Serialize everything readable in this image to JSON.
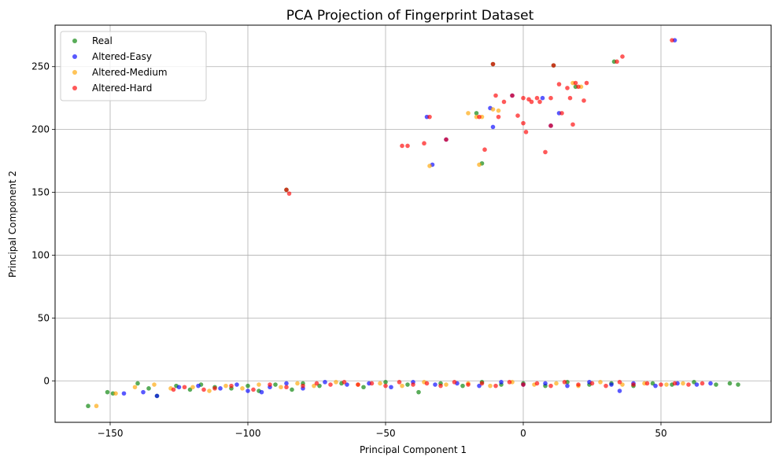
{
  "chart_data": {
    "type": "scatter",
    "title": "PCA Projection of Fingerprint Dataset",
    "xlabel": "Principal Component 1",
    "ylabel": "Principal Component 2",
    "xlim": [
      -170,
      90
    ],
    "ylim": [
      -33,
      283
    ],
    "xticks": [
      -150,
      -100,
      -50,
      0,
      50
    ],
    "yticks": [
      0,
      50,
      100,
      150,
      200,
      250
    ],
    "xtick_labels": [
      "−150",
      "−100",
      "−50",
      "0",
      "50"
    ],
    "ytick_labels": [
      "0",
      "50",
      "100",
      "150",
      "200",
      "250"
    ],
    "grid": true,
    "legend_position": "top-left",
    "series": [
      {
        "name": "Real",
        "color": "#008000",
        "points": [
          [
            -158,
            -20
          ],
          [
            -151,
            -9
          ],
          [
            -149,
            -10
          ],
          [
            -140,
            -2
          ],
          [
            -136,
            -6
          ],
          [
            -133,
            -12
          ],
          [
            -126,
            -4
          ],
          [
            -121,
            -7
          ],
          [
            -117,
            -3
          ],
          [
            -112,
            -5
          ],
          [
            -106,
            -6
          ],
          [
            -100,
            -4
          ],
          [
            -96,
            -8
          ],
          [
            -90,
            -3
          ],
          [
            -84,
            -7
          ],
          [
            -80,
            -2
          ],
          [
            -74,
            -4
          ],
          [
            -66,
            -2
          ],
          [
            -58,
            -5
          ],
          [
            -50,
            -1
          ],
          [
            -42,
            -3
          ],
          [
            -38,
            -9
          ],
          [
            -30,
            -2
          ],
          [
            -22,
            -4
          ],
          [
            -15,
            -1
          ],
          [
            -8,
            -3
          ],
          [
            0,
            -2
          ],
          [
            8,
            -4
          ],
          [
            16,
            -1
          ],
          [
            24,
            -3
          ],
          [
            32,
            -2
          ],
          [
            40,
            -4
          ],
          [
            47,
            -2
          ],
          [
            54,
            -3
          ],
          [
            62,
            -1
          ],
          [
            70,
            -3
          ],
          [
            75,
            -2
          ],
          [
            78,
            -3
          ],
          [
            -15,
            173
          ],
          [
            -17,
            213
          ],
          [
            -11,
            252
          ],
          [
            11,
            251
          ],
          [
            33,
            254
          ],
          [
            -86,
            152
          ],
          [
            19,
            234
          ]
        ]
      },
      {
        "name": "Altered-Easy",
        "color": "#0000ff",
        "points": [
          [
            -145,
            -10
          ],
          [
            -138,
            -9
          ],
          [
            -133,
            -12
          ],
          [
            -125,
            -5
          ],
          [
            -118,
            -4
          ],
          [
            -110,
            -6
          ],
          [
            -104,
            -3
          ],
          [
            -100,
            -8
          ],
          [
            -95,
            -9
          ],
          [
            -92,
            -5
          ],
          [
            -86,
            -2
          ],
          [
            -80,
            -6
          ],
          [
            -72,
            -1
          ],
          [
            -64,
            -3
          ],
          [
            -56,
            -2
          ],
          [
            -48,
            -5
          ],
          [
            -40,
            -1
          ],
          [
            -32,
            -3
          ],
          [
            -24,
            -2
          ],
          [
            -16,
            -4
          ],
          [
            -8,
            -1
          ],
          [
            0,
            -3
          ],
          [
            8,
            -2
          ],
          [
            16,
            -4
          ],
          [
            24,
            -1
          ],
          [
            32,
            -3
          ],
          [
            40,
            -2
          ],
          [
            48,
            -4
          ],
          [
            56,
            -2
          ],
          [
            63,
            -3
          ],
          [
            68,
            -2
          ],
          [
            35,
            -8
          ],
          [
            -35,
            210
          ],
          [
            -12,
            217
          ],
          [
            -11,
            202
          ],
          [
            -33,
            172
          ],
          [
            -28,
            192
          ],
          [
            13,
            213
          ],
          [
            55,
            271
          ],
          [
            10,
            203
          ],
          [
            -4,
            227
          ],
          [
            7,
            225
          ]
        ]
      },
      {
        "name": "Altered-Medium",
        "color": "#ffa500",
        "points": [
          [
            -155,
            -20
          ],
          [
            -148,
            -10
          ],
          [
            -141,
            -5
          ],
          [
            -134,
            -3
          ],
          [
            -128,
            -6
          ],
          [
            -120,
            -5
          ],
          [
            -114,
            -8
          ],
          [
            -108,
            -4
          ],
          [
            -102,
            -6
          ],
          [
            -96,
            -3
          ],
          [
            -88,
            -5
          ],
          [
            -82,
            -2
          ],
          [
            -76,
            -4
          ],
          [
            -68,
            -1
          ],
          [
            -60,
            -3
          ],
          [
            -52,
            -2
          ],
          [
            -44,
            -4
          ],
          [
            -36,
            -1
          ],
          [
            -28,
            -3
          ],
          [
            -20,
            -2
          ],
          [
            -12,
            -4
          ],
          [
            -4,
            -1
          ],
          [
            4,
            -3
          ],
          [
            12,
            -2
          ],
          [
            20,
            -4
          ],
          [
            28,
            -1
          ],
          [
            36,
            -3
          ],
          [
            44,
            -2
          ],
          [
            52,
            -3
          ],
          [
            58,
            -2
          ],
          [
            -16,
            172
          ],
          [
            -11,
            216
          ],
          [
            -9,
            215
          ],
          [
            -20,
            213
          ],
          [
            -34,
            171
          ],
          [
            18,
            237
          ],
          [
            21,
            234
          ],
          [
            -17,
            210
          ],
          [
            -15,
            210
          ]
        ]
      },
      {
        "name": "Altered-Hard",
        "color": "#ff0000",
        "points": [
          [
            -127,
            -7
          ],
          [
            -123,
            -5
          ],
          [
            -116,
            -7
          ],
          [
            -112,
            -6
          ],
          [
            -106,
            -4
          ],
          [
            -98,
            -7
          ],
          [
            -92,
            -3
          ],
          [
            -86,
            -5
          ],
          [
            -80,
            -4
          ],
          [
            -75,
            -2
          ],
          [
            -70,
            -3
          ],
          [
            -65,
            -1
          ],
          [
            -60,
            -3
          ],
          [
            -55,
            -2
          ],
          [
            -50,
            -4
          ],
          [
            -45,
            -1
          ],
          [
            -40,
            -3
          ],
          [
            -35,
            -2
          ],
          [
            -30,
            -4
          ],
          [
            -25,
            -1
          ],
          [
            -20,
            -3
          ],
          [
            -15,
            -2
          ],
          [
            -10,
            -4
          ],
          [
            -5,
            -1
          ],
          [
            0,
            -3
          ],
          [
            5,
            -2
          ],
          [
            10,
            -4
          ],
          [
            15,
            -1
          ],
          [
            20,
            -3
          ],
          [
            25,
            -2
          ],
          [
            30,
            -4
          ],
          [
            35,
            -1
          ],
          [
            40,
            -3
          ],
          [
            45,
            -2
          ],
          [
            50,
            -3
          ],
          [
            55,
            -2
          ],
          [
            60,
            -3
          ],
          [
            65,
            -2
          ],
          [
            -86,
            152
          ],
          [
            -85,
            149
          ],
          [
            -44,
            187
          ],
          [
            -42,
            187
          ],
          [
            -36,
            189
          ],
          [
            -34,
            210
          ],
          [
            -28,
            192
          ],
          [
            -16,
            210
          ],
          [
            -14,
            184
          ],
          [
            -11,
            252
          ],
          [
            -10,
            227
          ],
          [
            -9,
            210
          ],
          [
            -7,
            222
          ],
          [
            -4,
            227
          ],
          [
            -2,
            211
          ],
          [
            0,
            205
          ],
          [
            0,
            225
          ],
          [
            1,
            198
          ],
          [
            2,
            224
          ],
          [
            3,
            222
          ],
          [
            5,
            225
          ],
          [
            6,
            222
          ],
          [
            8,
            182
          ],
          [
            10,
            225
          ],
          [
            10,
            203
          ],
          [
            11,
            251
          ],
          [
            13,
            236
          ],
          [
            14,
            213
          ],
          [
            16,
            233
          ],
          [
            17,
            225
          ],
          [
            18,
            204
          ],
          [
            19,
            237
          ],
          [
            20,
            234
          ],
          [
            22,
            223
          ],
          [
            23,
            237
          ],
          [
            34,
            254
          ],
          [
            36,
            258
          ],
          [
            54,
            271
          ]
        ]
      }
    ]
  }
}
